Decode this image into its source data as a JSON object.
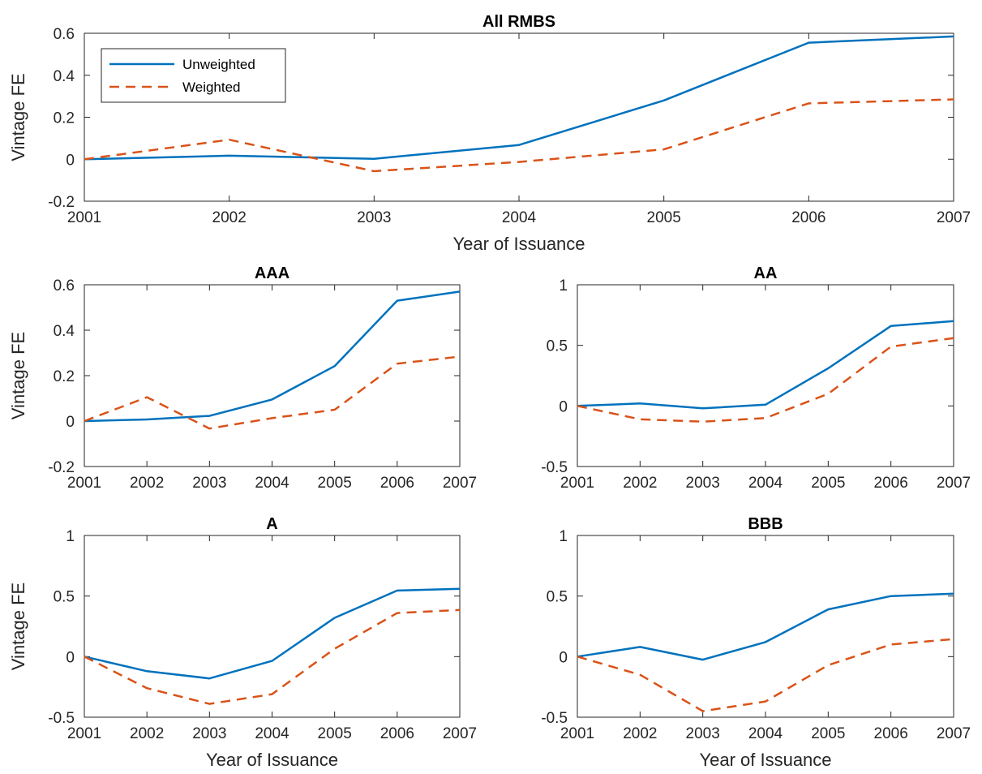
{
  "colors": {
    "unweighted": "#0072BD",
    "weighted": "#D95319",
    "axis": "#262626"
  },
  "legend": {
    "location": "top-left",
    "entries": [
      "Unweighted",
      "Weighted"
    ]
  },
  "chart_data": [
    {
      "type": "line",
      "title": "All RMBS",
      "xlabel": "Year of Issuance",
      "ylabel": "Vintage FE",
      "x": [
        2001,
        2002,
        2003,
        2004,
        2005,
        2006,
        2007
      ],
      "xticks": [
        "2001",
        "2002",
        "2003",
        "2004",
        "2005",
        "2006",
        "2007"
      ],
      "xlim": [
        2001,
        2007
      ],
      "ylim": [
        -0.2,
        0.6
      ],
      "yticks": [
        -0.2,
        0,
        0.2,
        0.4,
        0.6
      ],
      "ytick_labels": [
        "-0.2",
        "0",
        "0.2",
        "0.4",
        "0.6"
      ],
      "series": [
        {
          "name": "Unweighted",
          "style": "solid",
          "values": [
            0.0,
            0.017,
            0.002,
            0.068,
            0.28,
            0.555,
            0.585
          ]
        },
        {
          "name": "Weighted",
          "style": "dashed",
          "values": [
            0.0,
            0.093,
            -0.057,
            -0.013,
            0.047,
            0.266,
            0.285
          ]
        }
      ]
    },
    {
      "type": "line",
      "title": "AAA",
      "xlabel": "",
      "ylabel": "Vintage FE",
      "x": [
        2001,
        2002,
        2003,
        2004,
        2005,
        2006,
        2007
      ],
      "xticks": [
        "2001",
        "2002",
        "2003",
        "2004",
        "2005",
        "2006",
        "2007"
      ],
      "xlim": [
        2001,
        2007
      ],
      "ylim": [
        -0.2,
        0.6
      ],
      "yticks": [
        -0.2,
        0,
        0.2,
        0.4,
        0.6
      ],
      "ytick_labels": [
        "-0.2",
        "0",
        "0.2",
        "0.4",
        "0.6"
      ],
      "series": [
        {
          "name": "Unweighted",
          "style": "solid",
          "values": [
            0.0,
            0.007,
            0.023,
            0.095,
            0.242,
            0.53,
            0.57
          ]
        },
        {
          "name": "Weighted",
          "style": "dashed",
          "values": [
            0.0,
            0.105,
            -0.033,
            0.013,
            0.05,
            0.253,
            0.284
          ]
        }
      ]
    },
    {
      "type": "line",
      "title": "AA",
      "xlabel": "",
      "ylabel": "",
      "x": [
        2001,
        2002,
        2003,
        2004,
        2005,
        2006,
        2007
      ],
      "xticks": [
        "2001",
        "2002",
        "2003",
        "2004",
        "2005",
        "2006",
        "2007"
      ],
      "xlim": [
        2001,
        2007
      ],
      "ylim": [
        -0.5,
        1
      ],
      "yticks": [
        -0.5,
        0,
        0.5,
        1
      ],
      "ytick_labels": [
        "-0.5",
        "0",
        "0.5",
        "1"
      ],
      "series": [
        {
          "name": "Unweighted",
          "style": "solid",
          "values": [
            0.0,
            0.02,
            -0.02,
            0.01,
            0.31,
            0.66,
            0.7
          ]
        },
        {
          "name": "Weighted",
          "style": "dashed",
          "values": [
            0.0,
            -0.11,
            -0.13,
            -0.1,
            0.1,
            0.49,
            0.56
          ]
        }
      ]
    },
    {
      "type": "line",
      "title": "A",
      "xlabel": "Year of Issuance",
      "ylabel": "Vintage FE",
      "x": [
        2001,
        2002,
        2003,
        2004,
        2005,
        2006,
        2007
      ],
      "xticks": [
        "2001",
        "2002",
        "2003",
        "2004",
        "2005",
        "2006",
        "2007"
      ],
      "xlim": [
        2001,
        2007
      ],
      "ylim": [
        -0.5,
        1
      ],
      "yticks": [
        -0.5,
        0,
        0.5,
        1
      ],
      "ytick_labels": [
        "-0.5",
        "0",
        "0.5",
        "1"
      ],
      "series": [
        {
          "name": "Unweighted",
          "style": "solid",
          "values": [
            0.0,
            -0.12,
            -0.18,
            -0.035,
            0.32,
            0.545,
            0.56
          ]
        },
        {
          "name": "Weighted",
          "style": "dashed",
          "values": [
            0.0,
            -0.26,
            -0.39,
            -0.31,
            0.065,
            0.36,
            0.385
          ]
        }
      ]
    },
    {
      "type": "line",
      "title": "BBB",
      "xlabel": "Year of Issuance",
      "ylabel": "",
      "x": [
        2001,
        2002,
        2003,
        2004,
        2005,
        2006,
        2007
      ],
      "xticks": [
        "2001",
        "2002",
        "2003",
        "2004",
        "2005",
        "2006",
        "2007"
      ],
      "xlim": [
        2001,
        2007
      ],
      "ylim": [
        -0.5,
        1
      ],
      "yticks": [
        -0.5,
        0,
        0.5,
        1
      ],
      "ytick_labels": [
        "-0.5",
        "0",
        "0.5",
        "1"
      ],
      "series": [
        {
          "name": "Unweighted",
          "style": "solid",
          "values": [
            0.0,
            0.08,
            -0.025,
            0.12,
            0.39,
            0.5,
            0.52
          ]
        },
        {
          "name": "Weighted",
          "style": "dashed",
          "values": [
            0.0,
            -0.15,
            -0.45,
            -0.37,
            -0.07,
            0.1,
            0.145
          ]
        }
      ]
    }
  ]
}
